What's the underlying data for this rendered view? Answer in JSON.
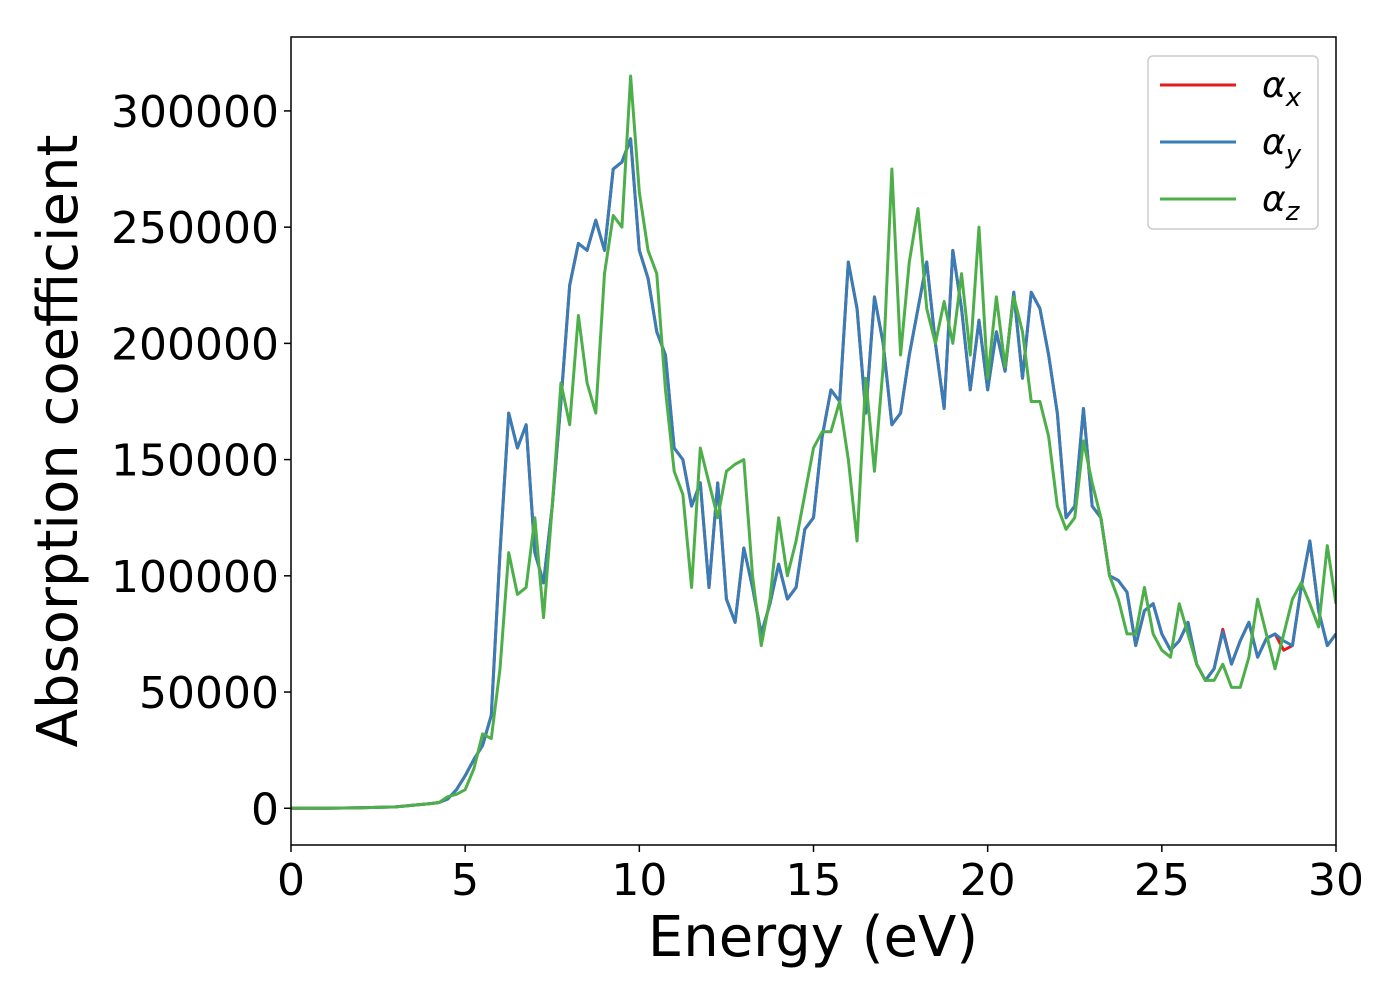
{
  "chart_data": {
    "type": "line",
    "xlabel": "Energy (eV)",
    "ylabel": "Absorption coefficient",
    "xlim": [
      0,
      30
    ],
    "ylim": [
      -15800,
      331800
    ],
    "xticks": [
      0,
      5,
      10,
      15,
      20,
      25,
      30
    ],
    "yticks": [
      0,
      50000,
      100000,
      150000,
      200000,
      250000,
      300000
    ],
    "grid": false,
    "legend": "upper right",
    "x": [
      0,
      1,
      2,
      3,
      4,
      4.25,
      4.5,
      4.75,
      5,
      5.25,
      5.5,
      5.75,
      6,
      6.25,
      6.5,
      6.75,
      7,
      7.25,
      7.5,
      7.75,
      8,
      8.25,
      8.5,
      8.75,
      9,
      9.25,
      9.5,
      9.75,
      10,
      10.25,
      10.5,
      10.75,
      11,
      11.25,
      11.5,
      11.75,
      12,
      12.25,
      12.5,
      12.75,
      13,
      13.25,
      13.5,
      13.75,
      14,
      14.25,
      14.5,
      14.75,
      15,
      15.25,
      15.5,
      15.75,
      16,
      16.25,
      16.5,
      16.75,
      17,
      17.25,
      17.5,
      17.75,
      18,
      18.25,
      18.5,
      18.75,
      19,
      19.25,
      19.5,
      19.75,
      20,
      20.25,
      20.5,
      20.75,
      21,
      21.25,
      21.5,
      21.75,
      22,
      22.25,
      22.5,
      22.75,
      23,
      23.25,
      23.5,
      23.75,
      24,
      24.25,
      24.5,
      24.75,
      25,
      25.25,
      25.5,
      25.75,
      26,
      26.25,
      26.5,
      26.75,
      27,
      27.25,
      27.5,
      27.75,
      28,
      28.25,
      28.5,
      28.75,
      29,
      29.25,
      29.5,
      29.75,
      30
    ],
    "series": [
      {
        "name": "αx",
        "color": "#e41a1c",
        "values": [
          0,
          0,
          200,
          600,
          2000,
          2500,
          4000,
          8000,
          14000,
          21000,
          27000,
          40000,
          110000,
          170000,
          155000,
          165000,
          110000,
          97000,
          130000,
          175000,
          225000,
          243000,
          240000,
          253000,
          240000,
          275000,
          278000,
          288000,
          240000,
          228000,
          205000,
          195000,
          155000,
          150000,
          130000,
          140000,
          95000,
          140000,
          90000,
          80000,
          112000,
          95000,
          75000,
          88000,
          105000,
          90000,
          95000,
          120000,
          125000,
          160000,
          180000,
          175000,
          235000,
          215000,
          170000,
          220000,
          200000,
          165000,
          170000,
          195000,
          215000,
          235000,
          200000,
          172000,
          240000,
          215000,
          180000,
          210000,
          180000,
          205000,
          188000,
          222000,
          185000,
          222000,
          215000,
          195000,
          170000,
          125000,
          130000,
          172000,
          130000,
          125000,
          100000,
          98000,
          93000,
          70000,
          85000,
          88000,
          75000,
          68000,
          72000,
          80000,
          62000,
          55000,
          60000,
          77000,
          62000,
          72000,
          80000,
          65000,
          73000,
          75000,
          68000,
          70000,
          95000,
          115000,
          85000,
          70000,
          75000
        ]
      },
      {
        "name": "αy",
        "color": "#377eb8",
        "values": [
          0,
          0,
          200,
          600,
          2000,
          2500,
          4000,
          8000,
          14000,
          21000,
          27000,
          40000,
          110000,
          170000,
          155000,
          165000,
          110000,
          97000,
          130000,
          175000,
          225000,
          243000,
          240000,
          253000,
          240000,
          275000,
          278000,
          288000,
          240000,
          228000,
          205000,
          195000,
          155000,
          150000,
          130000,
          140000,
          95000,
          140000,
          90000,
          80000,
          112000,
          95000,
          75000,
          88000,
          105000,
          90000,
          95000,
          120000,
          125000,
          160000,
          180000,
          175000,
          235000,
          215000,
          170000,
          220000,
          200000,
          165000,
          170000,
          195000,
          215000,
          235000,
          200000,
          172000,
          240000,
          215000,
          180000,
          210000,
          180000,
          205000,
          188000,
          222000,
          185000,
          222000,
          215000,
          195000,
          170000,
          125000,
          130000,
          172000,
          130000,
          125000,
          100000,
          98000,
          93000,
          70000,
          85000,
          88000,
          75000,
          68000,
          72000,
          80000,
          62000,
          55000,
          60000,
          76000,
          62000,
          72000,
          80000,
          65000,
          73000,
          75000,
          72000,
          70000,
          95000,
          115000,
          85000,
          70000,
          75000
        ]
      },
      {
        "name": "αz",
        "color": "#4daf4a",
        "values": [
          0,
          0,
          200,
          600,
          2000,
          2500,
          5000,
          6000,
          8000,
          17000,
          32000,
          30000,
          60000,
          110000,
          92000,
          95000,
          125000,
          82000,
          130000,
          183000,
          165000,
          212000,
          183000,
          170000,
          230000,
          255000,
          250000,
          315000,
          265000,
          240000,
          230000,
          180000,
          145000,
          135000,
          95000,
          155000,
          140000,
          125000,
          145000,
          148000,
          150000,
          100000,
          70000,
          90000,
          125000,
          100000,
          115000,
          135000,
          155000,
          162000,
          162000,
          175000,
          150000,
          115000,
          185000,
          145000,
          190000,
          275000,
          195000,
          235000,
          258000,
          215000,
          200000,
          218000,
          200000,
          230000,
          195000,
          250000,
          185000,
          220000,
          190000,
          220000,
          205000,
          175000,
          175000,
          160000,
          130000,
          120000,
          125000,
          158000,
          140000,
          125000,
          100000,
          90000,
          75000,
          75000,
          95000,
          75000,
          68000,
          65000,
          88000,
          75000,
          62000,
          55000,
          55000,
          62000,
          52000,
          52000,
          65000,
          90000,
          75000,
          60000,
          75000,
          90000,
          97000,
          88000,
          78000,
          113000,
          88000
        ]
      }
    ]
  }
}
